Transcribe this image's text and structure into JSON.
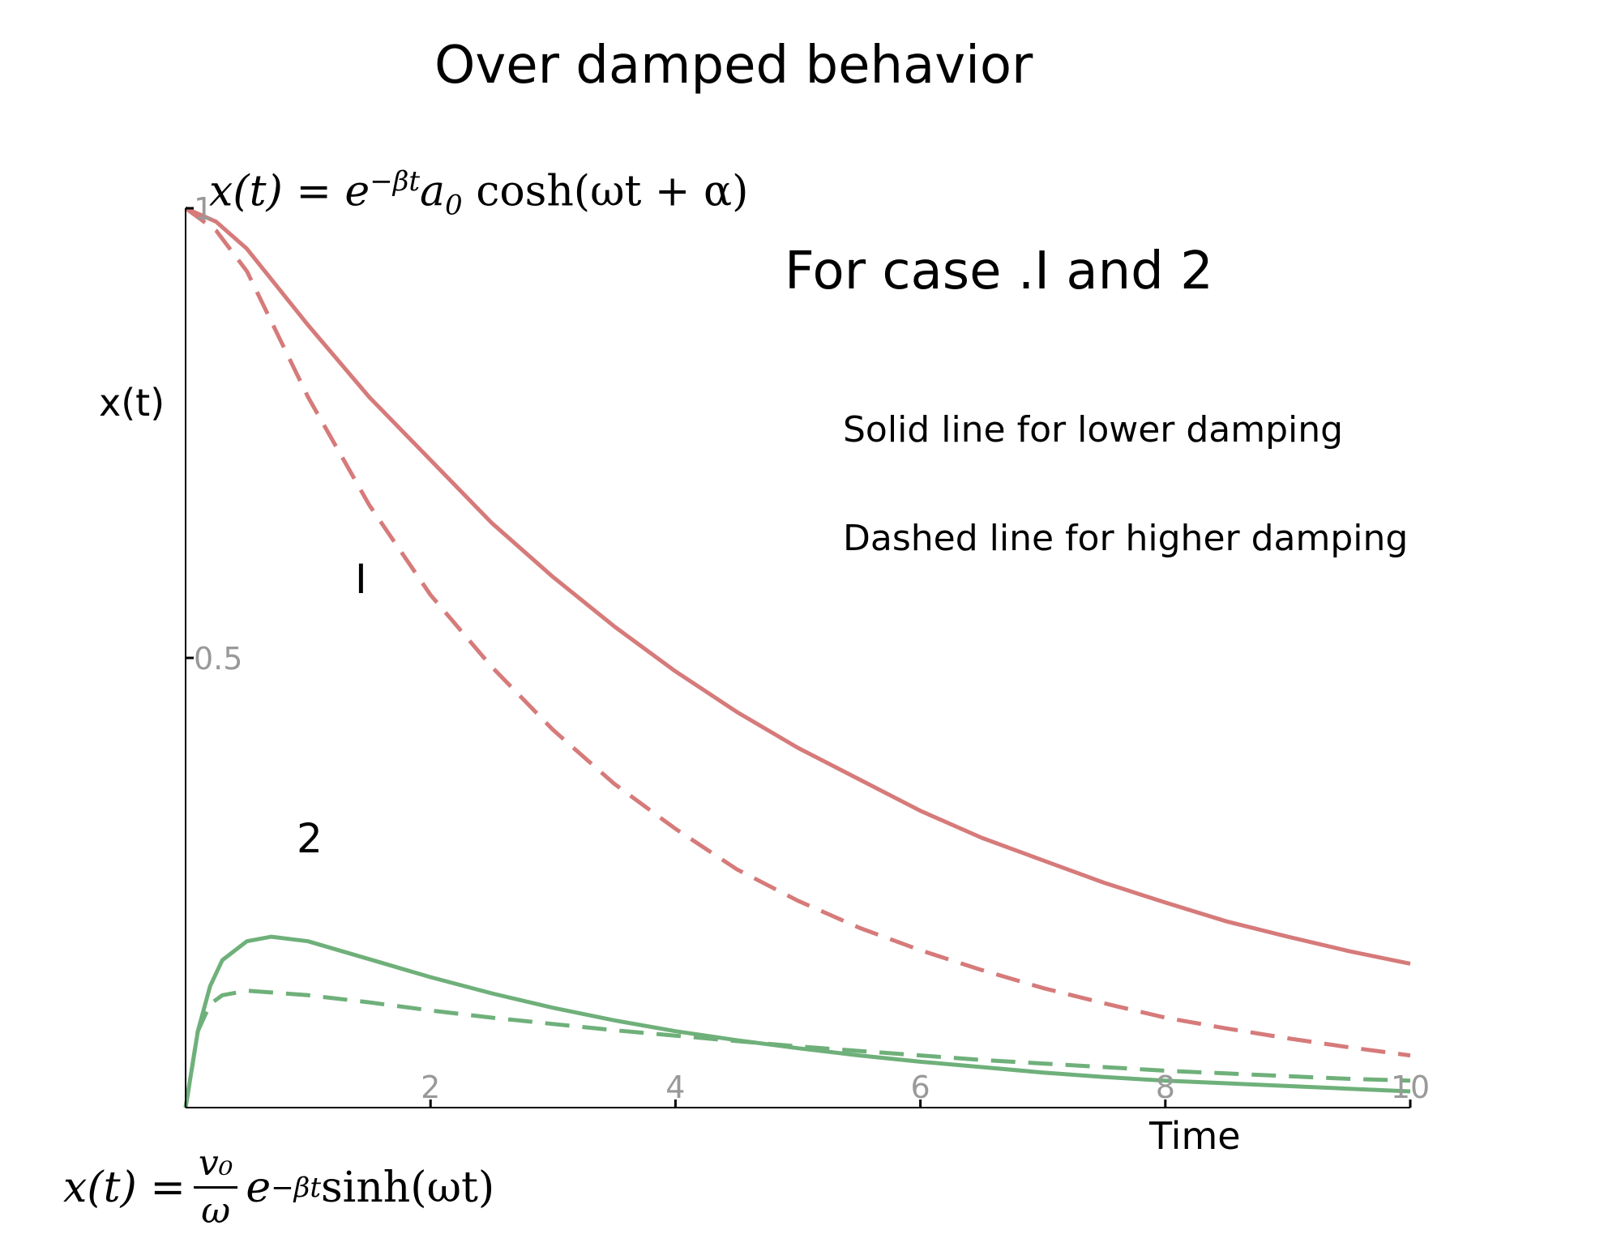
{
  "title": "Over damped behavior",
  "case_label": "For case .I and 2",
  "legend": {
    "solid": "Solid line for lower damping",
    "dashed": "Dashed line for higher damping"
  },
  "equations": {
    "top": {
      "lhs": "x(t) = e",
      "exp": "−βt",
      "rest": "a",
      "sub": "0",
      "tail": " cosh(ωt + α)"
    },
    "bottom": {
      "lhs": "x(t) =",
      "num": "v₀",
      "den": "ω",
      "e": "e",
      "exp": "−βt",
      "tail": " sinh(ωt)"
    }
  },
  "colors": {
    "case1": "#d67a7a",
    "case2": "#6fb07a",
    "axis": "#000000",
    "tick_label": "#999999"
  },
  "chart_data": {
    "type": "line",
    "xlabel": "Time",
    "ylabel": "x(t)",
    "xlim": [
      0,
      10
    ],
    "ylim": [
      0,
      1
    ],
    "x_ticks": [
      2,
      4,
      6,
      8,
      10
    ],
    "y_ticks": [
      0.5,
      1
    ],
    "x_tick_labels": [
      "2",
      "4",
      "6",
      "8",
      "10"
    ],
    "y_tick_labels": [
      "0.5",
      "1"
    ],
    "curve_labels": [
      {
        "text": "I",
        "curve": "case1"
      },
      {
        "text": "2",
        "curve": "case2"
      }
    ],
    "series": [
      {
        "group": "case1",
        "style": "solid",
        "x": [
          0,
          0.25,
          0.5,
          1,
          1.5,
          2,
          2.5,
          3,
          3.5,
          4,
          4.5,
          5,
          5.5,
          6,
          6.5,
          7,
          7.5,
          8,
          8.5,
          9,
          9.5,
          10
        ],
        "y": [
          1,
          0.985,
          0.955,
          0.87,
          0.79,
          0.72,
          0.65,
          0.59,
          0.535,
          0.485,
          0.44,
          0.4,
          0.365,
          0.33,
          0.3,
          0.275,
          0.25,
          0.228,
          0.207,
          0.19,
          0.174,
          0.16
        ]
      },
      {
        "group": "case1",
        "style": "dashed",
        "x": [
          0,
          0.25,
          0.5,
          1,
          1.5,
          2,
          2.5,
          3,
          3.5,
          4,
          4.5,
          5,
          5.5,
          6,
          6.5,
          7,
          7.5,
          8,
          8.5,
          9,
          9.5,
          10
        ],
        "y": [
          1,
          0.975,
          0.93,
          0.79,
          0.67,
          0.57,
          0.49,
          0.42,
          0.36,
          0.31,
          0.265,
          0.23,
          0.2,
          0.175,
          0.153,
          0.133,
          0.116,
          0.1,
          0.088,
          0.077,
          0.067,
          0.058
        ]
      },
      {
        "group": "case2",
        "style": "solid",
        "x": [
          0,
          0.1,
          0.2,
          0.3,
          0.5,
          0.7,
          1,
          1.5,
          2,
          2.5,
          3,
          3.5,
          4,
          4.5,
          5,
          5.5,
          6,
          6.5,
          7,
          7.5,
          8,
          8.5,
          9,
          9.5,
          10
        ],
        "y": [
          0,
          0.085,
          0.135,
          0.164,
          0.185,
          0.19,
          0.185,
          0.165,
          0.145,
          0.127,
          0.111,
          0.097,
          0.085,
          0.075,
          0.066,
          0.058,
          0.051,
          0.045,
          0.039,
          0.034,
          0.03,
          0.027,
          0.024,
          0.021,
          0.018
        ]
      },
      {
        "group": "case2",
        "style": "dashed",
        "x": [
          0,
          0.1,
          0.2,
          0.3,
          0.5,
          0.7,
          1,
          1.5,
          2,
          2.5,
          3,
          3.5,
          4,
          4.5,
          5,
          5.5,
          6,
          6.5,
          7,
          7.5,
          8,
          8.5,
          9,
          9.5,
          10
        ],
        "y": [
          0,
          0.085,
          0.115,
          0.125,
          0.13,
          0.128,
          0.125,
          0.117,
          0.108,
          0.1,
          0.093,
          0.086,
          0.08,
          0.074,
          0.068,
          0.063,
          0.058,
          0.053,
          0.049,
          0.045,
          0.041,
          0.038,
          0.035,
          0.032,
          0.03
        ]
      }
    ]
  }
}
